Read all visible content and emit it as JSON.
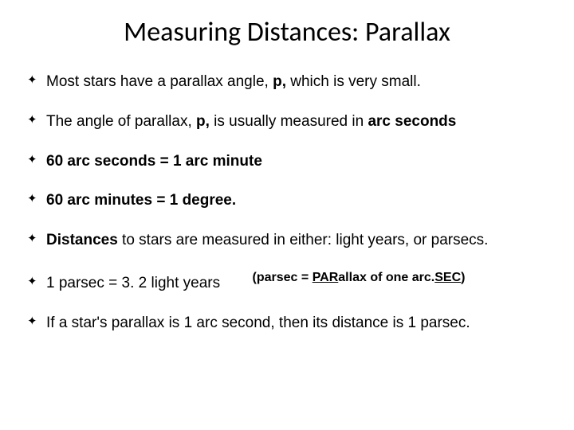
{
  "title": "Measuring Distances: Parallax",
  "bullets": {
    "b1_pre": "Most stars have a parallax angle, ",
    "b1_bold": "p,",
    "b1_post": " which is very small.",
    "b2_pre": "The angle of parallax, ",
    "b2_bold1": "p,",
    "b2_mid": "  is usually measured in ",
    "b2_bold2": "arc seconds",
    "b3": "60 arc seconds = 1 arc minute",
    "b4": "60 arc minutes = 1 degree.",
    "b5_bold": "Distances",
    "b5_rest": " to stars are measured in either: light years, or parsecs.",
    "note_pre": "(parsec = ",
    "note_u1": "PAR",
    "note_mid": "allax of one arc.",
    "note_u2": "SEC",
    "note_post": ")",
    "b6": "1 parsec = 3. 2 light years",
    "b7": "If a star's parallax is 1 arc second,  then its distance is 1 parsec."
  },
  "style": {
    "background": "#ffffff",
    "text_color": "#000000",
    "title_fontsize": 34,
    "body_fontsize": 19,
    "note_fontsize": 16,
    "bullet_glyph": "✦"
  }
}
